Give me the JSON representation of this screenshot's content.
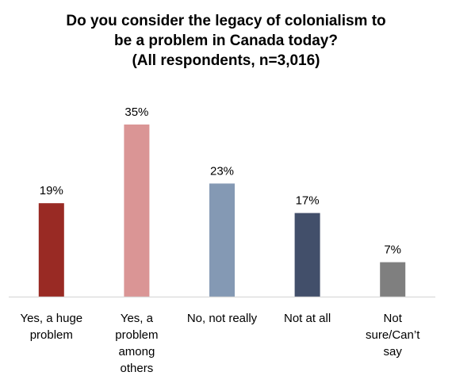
{
  "chart_data": {
    "type": "bar",
    "title_lines": [
      "Do you consider the legacy of colonialism to",
      "be a problem in Canada today?",
      "(All respondents, n=3,016)"
    ],
    "categories": [
      [
        "Yes, a huge",
        "problem"
      ],
      [
        "Yes, a",
        "problem",
        "among",
        "others"
      ],
      [
        "No, not really"
      ],
      [
        "Not at all"
      ],
      [
        "Not",
        "sure/Can’t",
        "say"
      ]
    ],
    "values": [
      19,
      35,
      23,
      17,
      7
    ],
    "value_labels": [
      "19%",
      "35%",
      "23%",
      "17%",
      "7%"
    ],
    "colors": [
      "#992A24",
      "#DA9595",
      "#8499B4",
      "#424F6A",
      "#7F7F7F"
    ],
    "ylim": [
      0,
      40
    ],
    "grid": false,
    "legend": "none"
  }
}
